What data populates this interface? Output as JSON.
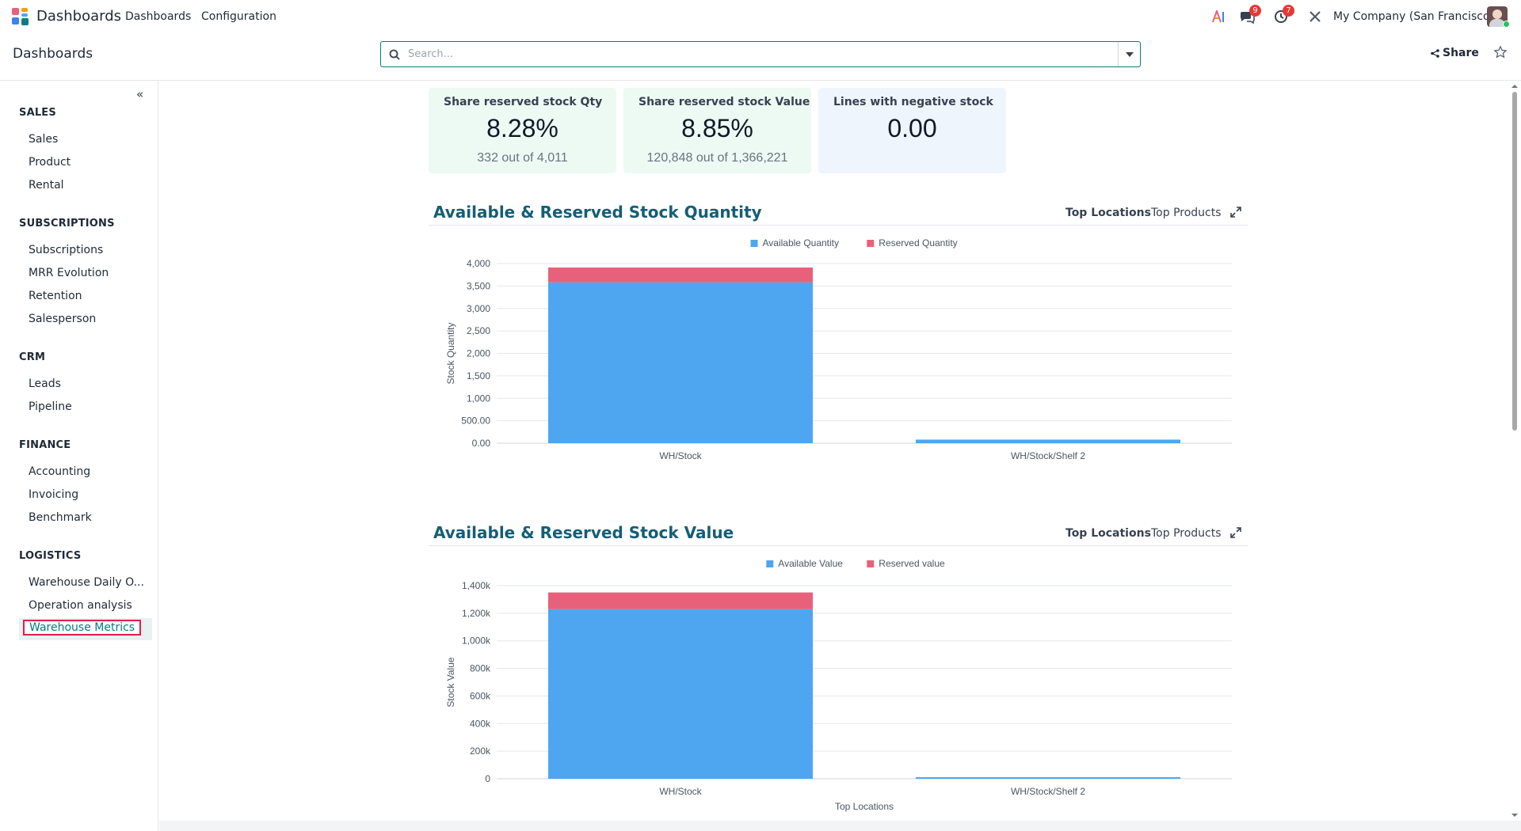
{
  "navbar": {
    "brand": "Dashboards",
    "menu": [
      "Dashboards",
      "Configuration"
    ],
    "messages_count": "9",
    "activities_count": "7",
    "company": "My Company (San Francisco)"
  },
  "control": {
    "title": "Dashboards",
    "search_placeholder": "Search...",
    "share_label": "Share"
  },
  "sidebar": {
    "sections": [
      {
        "title": "SALES",
        "items": [
          "Sales",
          "Product",
          "Rental"
        ]
      },
      {
        "title": "SUBSCRIPTIONS",
        "items": [
          "Subscriptions",
          "MRR Evolution",
          "Retention",
          "Salesperson"
        ]
      },
      {
        "title": "CRM",
        "items": [
          "Leads",
          "Pipeline"
        ]
      },
      {
        "title": "FINANCE",
        "items": [
          "Accounting",
          "Invoicing",
          "Benchmark"
        ]
      },
      {
        "title": "LOGISTICS",
        "items": [
          "Warehouse Daily O...",
          "Operation analysis",
          "Warehouse Metrics"
        ]
      }
    ],
    "active_item": "Warehouse Metrics"
  },
  "kpis": [
    {
      "title": "Share reserved stock Qty",
      "value": "8.28%",
      "sub": "332 out of 4,011"
    },
    {
      "title": "Share reserved stock Value",
      "value": "8.85%",
      "sub": "120,848 out of 1,366,221"
    },
    {
      "title": "Lines with negative stock",
      "value": "0.00",
      "sub": ""
    }
  ],
  "colors": {
    "accent": "#017e84",
    "available": "#4ea6f0",
    "reserved": "#e8617a",
    "kpi_green": "#ecfaf3",
    "kpi_blue": "#eff5fd"
  },
  "chart_data": [
    {
      "type": "bar",
      "stacked": true,
      "title": "Available & Reserved Stock Quantity",
      "tabs": [
        "Top Locations",
        "Top Products"
      ],
      "active_tab": "Top Locations",
      "categories": [
        "WH/Stock",
        "WH/Stock/Shelf 2"
      ],
      "series": [
        {
          "name": "Available Quantity",
          "values": [
            3580,
            80
          ]
        },
        {
          "name": "Reserved Quantity",
          "values": [
            332,
            0
          ]
        }
      ],
      "xlabel": "Top Locations",
      "ylabel": "Stock Quantity",
      "ylim": [
        0,
        4000
      ],
      "yticks": [
        0,
        500,
        1000,
        1500,
        2000,
        2500,
        3000,
        3500,
        4000
      ],
      "ytick_labels": [
        "0.00",
        "500.00",
        "1,000",
        "1,500",
        "2,000",
        "2,500",
        "3,000",
        "3,500",
        "4,000"
      ],
      "legend": "top-center",
      "grid": true
    },
    {
      "type": "bar",
      "stacked": true,
      "title": "Available & Reserved Stock Value",
      "tabs": [
        "Top Locations",
        "Top Products"
      ],
      "active_tab": "Top Locations",
      "categories": [
        "WH/Stock",
        "WH/Stock/Shelf 2"
      ],
      "series": [
        {
          "name": "Available Value",
          "values": [
            1230000,
            5000
          ]
        },
        {
          "name": "Reserved value",
          "values": [
            120848,
            0
          ]
        }
      ],
      "xlabel": "Top Locations",
      "ylabel": "Stock Value",
      "ylim": [
        0,
        1400000
      ],
      "yticks": [
        0,
        200000,
        400000,
        600000,
        800000,
        1000000,
        1200000,
        1400000
      ],
      "ytick_labels": [
        "0",
        "200k",
        "400k",
        "600k",
        "800k",
        "1,000k",
        "1,200k",
        "1,400k"
      ],
      "legend": "top-center",
      "grid": true
    }
  ]
}
